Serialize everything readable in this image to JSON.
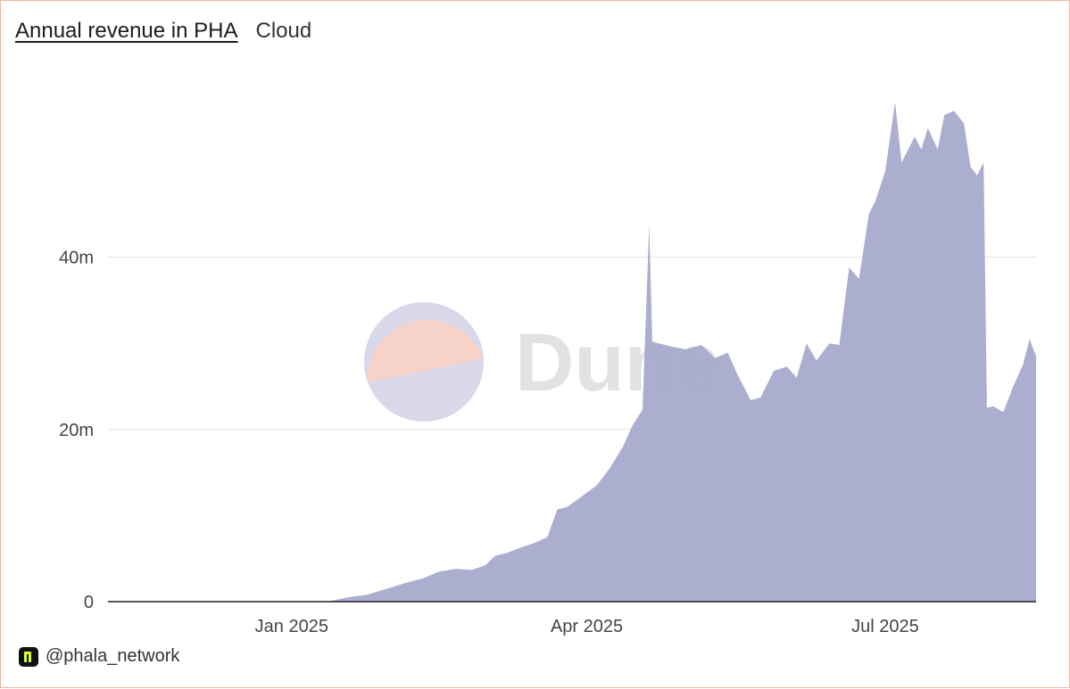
{
  "header": {
    "title": "Annual revenue in PHA",
    "subtitle": "Cloud"
  },
  "watermark": {
    "text": "Dune"
  },
  "footer": {
    "handle": "@phala_network",
    "logo_icon": "phala-logo-icon"
  },
  "colors": {
    "area": "#a8aacd",
    "grid": "#e4e4e4",
    "axis": "#222222",
    "watermark_top": "#f6d2c8",
    "watermark_bottom": "#d8d8ea"
  },
  "chart_data": {
    "type": "area",
    "title": "Annual revenue in PHA",
    "subtitle": "Cloud",
    "x_axis": {
      "type": "date",
      "range": [
        "2024-11-06",
        "2025-08-16"
      ],
      "tick_labels": [
        "Jan 2025",
        "Apr 2025",
        "Jul 2025"
      ],
      "ticks": [
        "2025-01-01",
        "2025-04-01",
        "2025-07-01"
      ]
    },
    "y_axis": {
      "range": [
        0,
        62000000
      ],
      "tick_labels": [
        "0",
        "20m",
        "40m"
      ],
      "ticks": [
        0,
        20000000,
        40000000
      ]
    },
    "grid": true,
    "series": [
      {
        "values": [
          [
            "2024-11-06",
            0
          ],
          [
            "2025-01-12",
            0
          ],
          [
            "2025-01-18",
            500000
          ],
          [
            "2025-01-24",
            800000
          ],
          [
            "2025-01-30",
            1500000
          ],
          [
            "2025-02-05",
            2200000
          ],
          [
            "2025-02-10",
            2700000
          ],
          [
            "2025-02-15",
            3500000
          ],
          [
            "2025-02-20",
            3800000
          ],
          [
            "2025-02-25",
            3700000
          ],
          [
            "2025-03-01",
            4200000
          ],
          [
            "2025-03-04",
            5300000
          ],
          [
            "2025-03-08",
            5700000
          ],
          [
            "2025-03-12",
            6300000
          ],
          [
            "2025-03-16",
            6800000
          ],
          [
            "2025-03-20",
            7500000
          ],
          [
            "2025-03-23",
            10700000
          ],
          [
            "2025-03-26",
            11000000
          ],
          [
            "2025-03-30",
            12100000
          ],
          [
            "2025-04-04",
            13500000
          ],
          [
            "2025-04-08",
            15500000
          ],
          [
            "2025-04-12",
            18000000
          ],
          [
            "2025-04-15",
            20500000
          ],
          [
            "2025-04-18",
            22300000
          ],
          [
            "2025-04-20",
            43800000
          ],
          [
            "2025-04-21",
            30200000
          ],
          [
            "2025-04-26",
            29700000
          ],
          [
            "2025-05-01",
            29300000
          ],
          [
            "2025-05-06",
            29800000
          ],
          [
            "2025-05-10",
            28300000
          ],
          [
            "2025-05-14",
            28900000
          ],
          [
            "2025-05-17",
            26300000
          ],
          [
            "2025-05-21",
            23400000
          ],
          [
            "2025-05-24",
            23700000
          ],
          [
            "2025-05-28",
            26800000
          ],
          [
            "2025-06-01",
            27300000
          ],
          [
            "2025-06-04",
            26000000
          ],
          [
            "2025-06-07",
            30000000
          ],
          [
            "2025-06-10",
            28000000
          ],
          [
            "2025-06-14",
            30000000
          ],
          [
            "2025-06-17",
            29800000
          ],
          [
            "2025-06-20",
            38800000
          ],
          [
            "2025-06-23",
            37500000
          ],
          [
            "2025-06-26",
            45000000
          ],
          [
            "2025-06-28",
            46500000
          ],
          [
            "2025-07-01",
            50000000
          ],
          [
            "2025-07-04",
            58000000
          ],
          [
            "2025-07-06",
            51000000
          ],
          [
            "2025-07-10",
            54000000
          ],
          [
            "2025-07-12",
            52500000
          ],
          [
            "2025-07-14",
            55000000
          ],
          [
            "2025-07-17",
            52500000
          ],
          [
            "2025-07-19",
            56500000
          ],
          [
            "2025-07-22",
            57000000
          ],
          [
            "2025-07-25",
            55500000
          ],
          [
            "2025-07-27",
            50500000
          ],
          [
            "2025-07-29",
            49500000
          ],
          [
            "2025-07-31",
            51000000
          ],
          [
            "2025-08-01",
            22500000
          ],
          [
            "2025-08-03",
            22700000
          ],
          [
            "2025-08-06",
            22000000
          ],
          [
            "2025-08-09",
            25000000
          ],
          [
            "2025-08-12",
            27500000
          ],
          [
            "2025-08-14",
            30500000
          ],
          [
            "2025-08-16",
            28500000
          ]
        ]
      }
    ]
  }
}
